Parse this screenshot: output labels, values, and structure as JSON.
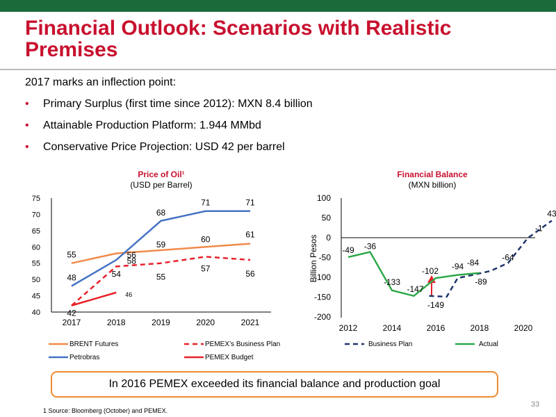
{
  "slide": {
    "title": "Financial Outlook: Scenarios with Realistic Premises",
    "intro": "2017 marks an inflection point:",
    "bullets": [
      "Primary Surplus (first time since 2012): MXN 8.4 billion",
      "Attainable Production Platform: 1.944 MMbd",
      "Conservative Price Projection: USD 42 per barrel"
    ],
    "callout": "In 2016 PEMEX exceeded its financial balance and production goal",
    "footnote": "1  Source: Bloomberg (October) and PEMEX.",
    "page_number": "33",
    "colors": {
      "header_bar": "#1a6b39",
      "title": "#c8102e",
      "callout_border": "#f08a30"
    }
  },
  "chart_data": [
    {
      "type": "line",
      "title": "Price of Oil¹",
      "subtitle": "(USD per Barrel)",
      "xlabel": "",
      "ylabel": "",
      "x": [
        2017,
        2018,
        2019,
        2020,
        2021
      ],
      "ylim": [
        40,
        75
      ],
      "yticks": [
        40,
        45,
        50,
        55,
        60,
        65,
        70,
        75
      ],
      "grid": false,
      "series": [
        {
          "name": "BRENT  Futures",
          "color": "#f08a4b",
          "dash": "solid",
          "values": [
            55,
            58,
            59,
            60,
            61
          ]
        },
        {
          "name": "Petrobras",
          "color": "#4472c4",
          "dash": "solid",
          "values": [
            48,
            56,
            68,
            71,
            71
          ]
        },
        {
          "name": "PEMEX’s Business Plan",
          "color": "#e8202a",
          "dash": "dashed",
          "values": [
            42,
            54,
            55,
            57,
            56
          ]
        },
        {
          "name": "PEMEX Budget",
          "color": "#e8202a",
          "dash": "solid",
          "values": [
            42,
            46,
            null,
            null,
            null
          ]
        }
      ],
      "data_labels": [
        {
          "x": 2017,
          "y": 55,
          "text": "55"
        },
        {
          "x": 2017,
          "y": 48,
          "text": "48"
        },
        {
          "x": 2017,
          "y": 42,
          "text": "42"
        },
        {
          "x": 2018,
          "y": 56,
          "text": "56"
        },
        {
          "x": 2018,
          "y": 58,
          "text": "58"
        },
        {
          "x": 2018,
          "y": 54,
          "text": "54"
        },
        {
          "x": 2018,
          "y": 46,
          "text": "46"
        },
        {
          "x": 2019,
          "y": 68,
          "text": "68"
        },
        {
          "x": 2019,
          "y": 59,
          "text": "59"
        },
        {
          "x": 2019,
          "y": 55,
          "text": "55"
        },
        {
          "x": 2020,
          "y": 71,
          "text": "71"
        },
        {
          "x": 2020,
          "y": 60,
          "text": "60"
        },
        {
          "x": 2020,
          "y": 57,
          "text": "57"
        },
        {
          "x": 2021,
          "y": 71,
          "text": "71"
        },
        {
          "x": 2021,
          "y": 61,
          "text": "61"
        },
        {
          "x": 2021,
          "y": 56,
          "text": "56"
        }
      ],
      "legend_position": "bottom"
    },
    {
      "type": "line",
      "title": "Financial Balance",
      "subtitle": "(MXN billion)",
      "xlabel": "",
      "ylabel": "Billion Pesos",
      "xlim": [
        2012,
        2021.6
      ],
      "xticks": [
        2012,
        2014,
        2016,
        2018,
        2020
      ],
      "ylim": [
        -200,
        100
      ],
      "yticks": [
        -200,
        -150,
        -100,
        -50,
        0,
        50,
        100
      ],
      "grid": false,
      "series": [
        {
          "name": "Business Plan",
          "color": "#1f3569",
          "dash": "dashed",
          "x": [
            2015.7,
            2016.5,
            2017,
            2017.7,
            2018.5,
            2019.3,
            2020.2,
            2021.3
          ],
          "values": [
            -147,
            -149,
            -102,
            -94,
            -84,
            -64,
            -1,
            43
          ]
        },
        {
          "name": "Actual",
          "color": "#2ea84a",
          "dash": "solid",
          "x": [
            2012,
            2013,
            2014,
            2015,
            2016,
            2017,
            2018
          ],
          "values": [
            -49,
            -36,
            -133,
            -147,
            -102,
            -94,
            -89
          ]
        }
      ],
      "data_labels": [
        {
          "x": 2012,
          "y": -49,
          "text": "-49"
        },
        {
          "x": 2013,
          "y": -36,
          "text": "-36"
        },
        {
          "x": 2014,
          "y": -133,
          "text": "-133"
        },
        {
          "x": 2015,
          "y": -147,
          "text": "-147"
        },
        {
          "x": 2016,
          "y": -149,
          "text": "-149"
        },
        {
          "x": 2016,
          "y": -102,
          "text": "-102"
        },
        {
          "x": 2017,
          "y": -94,
          "text": "-94"
        },
        {
          "x": 2017.7,
          "y": -84,
          "text": "-84"
        },
        {
          "x": 2018,
          "y": -89,
          "text": "-89"
        },
        {
          "x": 2019.3,
          "y": -64,
          "text": "-64"
        },
        {
          "x": 2020.2,
          "y": -1,
          "text": "-1"
        },
        {
          "x": 2021.3,
          "y": 43,
          "text": "43"
        }
      ],
      "annotation": "red upward arrow near 2016",
      "legend_position": "bottom"
    }
  ]
}
